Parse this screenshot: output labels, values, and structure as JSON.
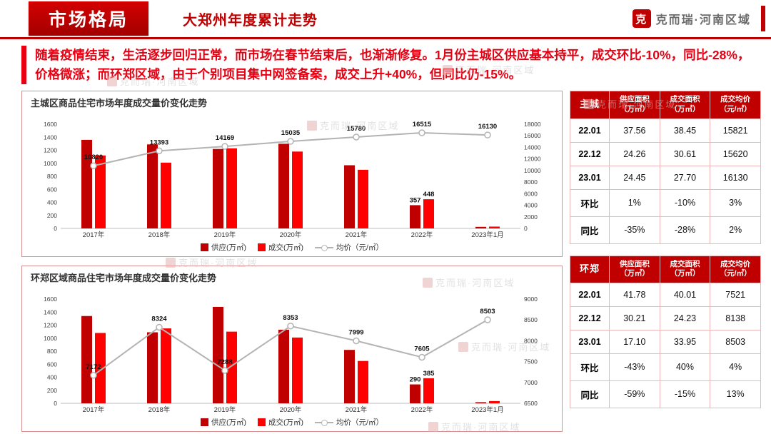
{
  "header": {
    "section_label": "市场格局",
    "title": "大郑州年度累计走势",
    "logo_seal": "克",
    "logo_text": "克而瑞·河南区域"
  },
  "intro": {
    "text": "随着疫情结束，生活逐步回归正常，而市场在春节结束后，也渐渐修复。1月份主城区供应基本持平，成交环比-10%，同比-28%，价格微涨；而环郑区域，由于个别项目集中网签备案，成交上升+40%，但同比仍-15%。"
  },
  "watermark_text": "克而瑞·河南区域",
  "chart_data": [
    {
      "type": "bar",
      "title": "主城区商品住宅市场年度成交量价变化走势",
      "categories": [
        "2017年",
        "2018年",
        "2019年",
        "2020年",
        "2021年",
        "2022年",
        "2023年1月"
      ],
      "left_axis": {
        "min": 0,
        "max": 1600,
        "step": 200
      },
      "right_axis": {
        "min": 0,
        "max": 18000,
        "step": 2000
      },
      "series": [
        {
          "name": "供应(万㎡)",
          "kind": "bar",
          "color": "#c00000",
          "values": [
            1360,
            1290,
            1220,
            1300,
            970,
            357,
            24
          ],
          "labels": {
            "5": "357"
          }
        },
        {
          "name": "成交(万㎡)",
          "kind": "bar",
          "color": "#fe0000",
          "values": [
            1120,
            1010,
            1230,
            1180,
            900,
            448,
            28
          ],
          "labels": {
            "5": "448"
          }
        },
        {
          "name": "均价（元/㎡）",
          "kind": "line",
          "color": "#b3b3b3",
          "values": [
            10820,
            13393,
            14169,
            15035,
            15780,
            16515,
            16130
          ],
          "labels": "all"
        }
      ],
      "legend_position": "bottom",
      "grid": false
    },
    {
      "type": "bar",
      "title": "环郑区域商品住宅市场年度成交量价变化走势",
      "categories": [
        "2017年",
        "2018年",
        "2019年",
        "2020年",
        "2021年",
        "2022年",
        "2023年1月"
      ],
      "left_axis": {
        "min": 0,
        "max": 1600,
        "step": 200
      },
      "right_axis": {
        "min": 6500,
        "max": 9000,
        "step": 500
      },
      "series": [
        {
          "name": "供应(万㎡)",
          "kind": "bar",
          "color": "#c00000",
          "values": [
            1340,
            1090,
            1480,
            1130,
            820,
            290,
            17
          ],
          "labels": {
            "5": "290"
          }
        },
        {
          "name": "成交(万㎡)",
          "kind": "bar",
          "color": "#fe0000",
          "values": [
            1080,
            1150,
            1100,
            1010,
            650,
            385,
            34
          ],
          "labels": {
            "5": "385"
          }
        },
        {
          "name": "均价（元/㎡）",
          "kind": "line",
          "color": "#b3b3b3",
          "values": [
            7172,
            8324,
            7288,
            8353,
            7999,
            7605,
            8503
          ],
          "labels": "all"
        }
      ],
      "legend_position": "bottom",
      "grid": false
    }
  ],
  "tables": [
    {
      "corner": "主城",
      "columns": [
        "供应面积\n（万㎡）",
        "成交面积\n（万㎡）",
        "成交均价\n（元/㎡）"
      ],
      "rows": [
        {
          "label": "22.01",
          "values": [
            "37.56",
            "38.45",
            "15821"
          ]
        },
        {
          "label": "22.12",
          "values": [
            "24.26",
            "30.61",
            "15620"
          ]
        },
        {
          "label": "23.01",
          "values": [
            "24.45",
            "27.70",
            "16130"
          ]
        },
        {
          "label": "环比",
          "values": [
            "1%",
            "-10%",
            "3%"
          ]
        },
        {
          "label": "同比",
          "values": [
            "-35%",
            "-28%",
            "2%"
          ]
        }
      ]
    },
    {
      "corner": "环郑",
      "columns": [
        "供应面积\n（万㎡）",
        "成交面积\n（万㎡）",
        "成交均价\n（元/㎡）"
      ],
      "rows": [
        {
          "label": "22.01",
          "values": [
            "41.78",
            "40.01",
            "7521"
          ]
        },
        {
          "label": "22.12",
          "values": [
            "30.21",
            "24.23",
            "8138"
          ]
        },
        {
          "label": "23.01",
          "values": [
            "17.10",
            "33.95",
            "8503"
          ]
        },
        {
          "label": "环比",
          "values": [
            "-43%",
            "40%",
            "4%"
          ]
        },
        {
          "label": "同比",
          "values": [
            "-59%",
            "-15%",
            "13%"
          ]
        }
      ]
    }
  ]
}
